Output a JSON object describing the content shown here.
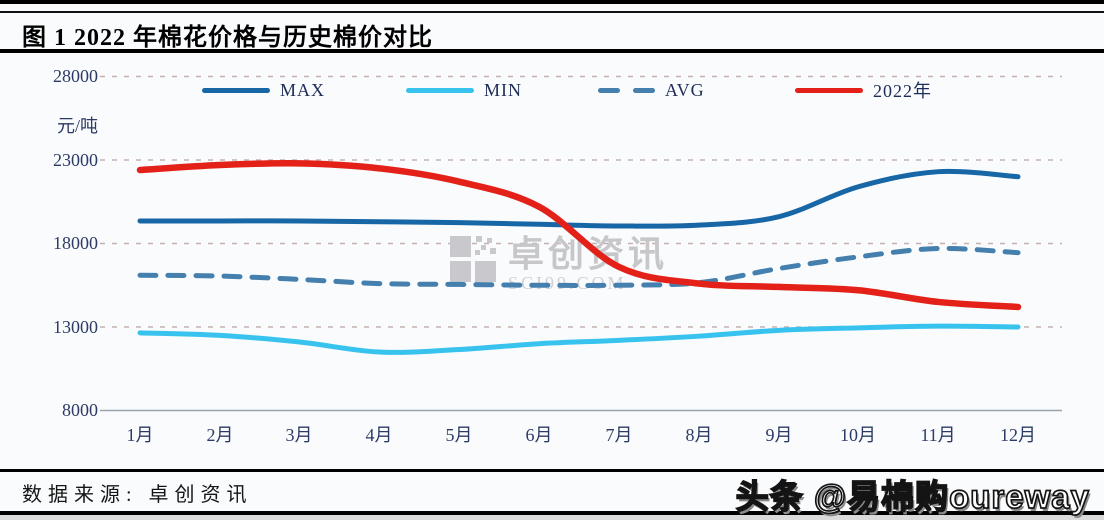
{
  "header": {
    "title": "图 1 2022 年棉花价格与历史棉价对比"
  },
  "chart_data": {
    "type": "line",
    "title": "图 1 2022 年棉花价格与历史棉价对比",
    "unit_label": "元/吨",
    "categories": [
      "1月",
      "2月",
      "3月",
      "4月",
      "5月",
      "6月",
      "7月",
      "8月",
      "9月",
      "10月",
      "11月",
      "12月"
    ],
    "yticks": [
      28000,
      23000,
      18000,
      13000,
      8000
    ],
    "ylim": [
      8000,
      28000
    ],
    "grid": "horizontal dashed gridlines, solid baseline at 8000",
    "legend_position": "top",
    "series": [
      {
        "name": "MAX",
        "color": "#1766a6",
        "line_style": "solid",
        "values": [
          19350,
          19350,
          19350,
          19300,
          19250,
          19150,
          19050,
          19100,
          19600,
          21400,
          22300,
          22000
        ]
      },
      {
        "name": "MIN",
        "color": "#38c3ee",
        "line_style": "solid",
        "values": [
          12650,
          12500,
          12100,
          11500,
          11650,
          12000,
          12200,
          12450,
          12800,
          12950,
          13050,
          13000
        ]
      },
      {
        "name": "AVG",
        "color": "#447fad",
        "line_style": "dashed",
        "values": [
          16100,
          16050,
          15850,
          15600,
          15550,
          15500,
          15500,
          15650,
          16500,
          17200,
          17700,
          17450
        ]
      },
      {
        "name": "2022年",
        "color": "#e32119",
        "line_style": "solid",
        "values": [
          22400,
          22700,
          22800,
          22500,
          21700,
          20200,
          16600,
          15600,
          15400,
          15200,
          14500,
          14200
        ]
      }
    ]
  },
  "watermark": {
    "name": "卓创资讯",
    "site": "SCI99.COM"
  },
  "footer": {
    "source": "数据来源: 卓创资讯",
    "brand": "头条 @易棉购oureway"
  },
  "colors": {
    "grid": "#c4b2b2",
    "axis": "#9aa3ad",
    "tick_text": "#2c3a66",
    "legend_text": "#1e2c58"
  }
}
